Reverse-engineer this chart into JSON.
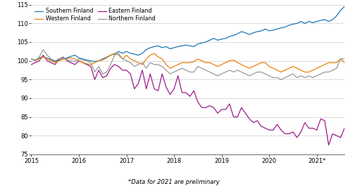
{
  "footnote": "*Data for 2021 are preliminary",
  "series": {
    "Southern Finland": {
      "color": "#1F77B4",
      "values": [
        100.5,
        100.2,
        100.8,
        101.0,
        100.7,
        100.3,
        99.8,
        100.2,
        100.5,
        100.8,
        101.2,
        101.5,
        100.8,
        100.5,
        100.2,
        100.0,
        99.8,
        100.0,
        100.5,
        101.0,
        101.5,
        101.8,
        102.5,
        102.0,
        102.5,
        102.0,
        101.8,
        101.5,
        102.0,
        103.0,
        103.5,
        103.8,
        104.0,
        103.5,
        103.8,
        103.2,
        103.5,
        103.8,
        104.0,
        104.2,
        104.0,
        103.8,
        104.5,
        104.8,
        105.0,
        105.5,
        106.0,
        105.5,
        105.8,
        106.0,
        106.5,
        106.8,
        107.2,
        107.8,
        107.5,
        107.0,
        107.5,
        107.8,
        108.0,
        108.5,
        108.0,
        108.2,
        108.5,
        108.8,
        109.0,
        109.5,
        109.8,
        110.0,
        110.5,
        110.0,
        110.5,
        110.2,
        110.5,
        110.8,
        111.0,
        110.5,
        111.0,
        112.0,
        113.5,
        114.5
      ]
    },
    "Eastern Finland": {
      "color": "#9B1D8A",
      "values": [
        99.0,
        99.5,
        100.0,
        101.5,
        100.0,
        99.5,
        99.0,
        100.5,
        101.0,
        100.0,
        99.5,
        99.0,
        100.0,
        99.5,
        99.0,
        98.5,
        95.0,
        97.5,
        95.5,
        96.0,
        98.0,
        99.0,
        98.5,
        97.5,
        97.5,
        96.5,
        92.5,
        94.0,
        97.5,
        92.5,
        96.5,
        92.5,
        92.0,
        96.5,
        93.0,
        91.0,
        92.5,
        96.0,
        91.5,
        91.5,
        90.5,
        92.0,
        89.0,
        87.5,
        87.5,
        88.0,
        87.5,
        86.0,
        87.0,
        87.0,
        88.5,
        85.0,
        85.0,
        87.5,
        86.0,
        84.5,
        83.5,
        84.0,
        82.5,
        82.0,
        81.5,
        81.5,
        83.0,
        81.5,
        80.5,
        80.5,
        81.0,
        79.5,
        81.0,
        83.5,
        82.0,
        82.0,
        81.5,
        84.5,
        84.0,
        77.5,
        80.5,
        80.0,
        79.5,
        82.0
      ]
    },
    "Western Finland": {
      "color": "#E8820C",
      "values": [
        100.5,
        100.0,
        100.5,
        101.0,
        100.5,
        100.0,
        99.5,
        100.0,
        100.5,
        100.5,
        100.8,
        100.5,
        100.0,
        99.5,
        99.2,
        99.0,
        99.5,
        100.0,
        100.2,
        100.8,
        101.5,
        102.0,
        101.5,
        100.5,
        101.5,
        100.5,
        100.0,
        99.5,
        99.0,
        100.5,
        101.5,
        102.0,
        101.0,
        100.5,
        99.0,
        98.0,
        98.5,
        99.0,
        99.5,
        99.5,
        99.5,
        99.8,
        100.5,
        100.0,
        99.5,
        99.5,
        99.0,
        98.5,
        99.0,
        99.5,
        100.0,
        100.2,
        99.5,
        99.0,
        98.5,
        98.0,
        98.5,
        99.0,
        99.5,
        99.5,
        98.5,
        98.0,
        97.5,
        97.0,
        97.5,
        98.0,
        98.5,
        98.0,
        97.5,
        97.0,
        97.0,
        97.5,
        98.0,
        98.5,
        99.0,
        99.5,
        99.5,
        99.5,
        100.5,
        99.5
      ]
    },
    "Northern Finland": {
      "color": "#999999",
      "values": [
        100.5,
        100.0,
        101.0,
        103.0,
        101.5,
        100.5,
        100.0,
        100.5,
        100.8,
        100.2,
        100.0,
        99.8,
        100.5,
        100.2,
        100.0,
        99.5,
        97.0,
        98.5,
        96.5,
        97.0,
        99.0,
        101.5,
        102.0,
        100.5,
        100.0,
        99.5,
        98.5,
        99.0,
        99.5,
        98.0,
        99.5,
        99.0,
        99.0,
        98.5,
        97.5,
        96.5,
        97.0,
        97.5,
        98.0,
        97.5,
        97.0,
        97.0,
        98.5,
        98.0,
        97.5,
        97.0,
        96.5,
        96.0,
        96.5,
        97.0,
        97.5,
        97.0,
        97.5,
        97.0,
        96.5,
        96.0,
        96.5,
        97.0,
        97.0,
        96.5,
        96.0,
        95.5,
        95.5,
        95.0,
        95.5,
        96.0,
        96.5,
        95.5,
        96.0,
        95.5,
        96.0,
        95.5,
        96.0,
        96.5,
        97.0,
        97.0,
        97.5,
        98.0,
        100.5,
        100.5
      ]
    }
  },
  "ylim": [
    75,
    115
  ],
  "yticks": [
    75,
    80,
    85,
    90,
    95,
    100,
    105,
    110,
    115
  ],
  "xtick_years": [
    "2015",
    "2016",
    "2017",
    "2018",
    "2019",
    "2020",
    "2021*"
  ],
  "xtick_positions": [
    0,
    12,
    24,
    36,
    48,
    60,
    72
  ],
  "n_months": 80,
  "background_color": "#ffffff",
  "grid_color": "#cccccc",
  "legend_order": [
    "Southern Finland",
    "Western Finland",
    "Eastern Finland",
    "Northern Finland"
  ]
}
